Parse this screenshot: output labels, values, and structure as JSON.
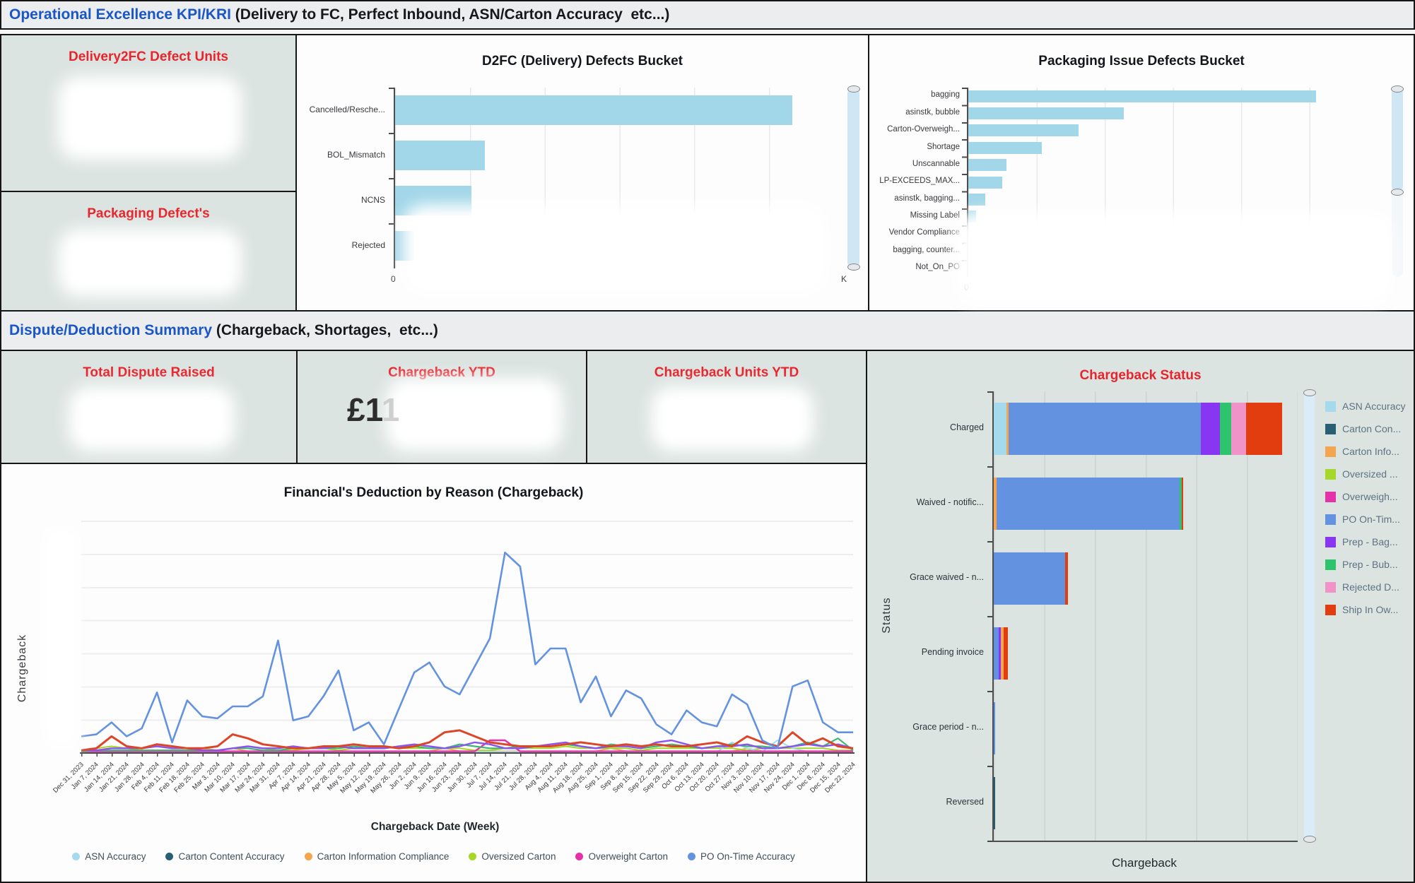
{
  "section1": {
    "strong": "Operational Excellence KPI/KRI",
    "rest": " (Delivery to FC, Perfect Inbound, ASN/Carton Accuracy  etc...)"
  },
  "section2": {
    "strong": "Dispute/Deduction Summary",
    "rest": " (Chargeback, Shortages,  etc...)"
  },
  "kpis": {
    "delivery2fc": {
      "title": "Delivery2FC Defect Units",
      "value_blurred": true
    },
    "packaging_defects": {
      "title": "Packaging Defect's",
      "value_blurred": true
    },
    "total_dispute": {
      "title": "Total Dispute Raised",
      "value_blurred": true
    },
    "chargeback_ytd": {
      "title": "Chargeback YTD",
      "value_strong": "£1",
      "value_faded": "1",
      "value_blurred": true
    },
    "chargeback_units_ytd": {
      "title": "Chargeback Units YTD",
      "value_blurred": true
    }
  },
  "palette": {
    "asn": "#a5d9ee",
    "carton_content": "#295f75",
    "carton_info": "#f5a54f",
    "oversized": "#a6d828",
    "overweight": "#e632a8",
    "po": "#6392e0",
    "prep_bag": "#8936f2",
    "prep_bub": "#2ec46e",
    "rejected": "#f093c8",
    "ship": "#e13d0e",
    "red_line": "#dd4527",
    "purple_line": "#8b54ee",
    "green_line": "#3cb873",
    "bar_blue": "#a2d7e9",
    "header_blue": "#1a56c6",
    "kpi_red": "#e8242c"
  },
  "chart_data": [
    {
      "id": "d2fc",
      "type": "bar",
      "orientation": "horizontal",
      "title": "D2FC (Delivery) Defects Bucket",
      "categories": [
        "Cancelled/Resche...",
        "BOL_Mismatch",
        "NCNS",
        "Rejected"
      ],
      "values_pct": [
        88.5,
        20,
        17,
        4.2
      ],
      "xticks": [
        "0",
        "K"
      ],
      "values_blurred": true
    },
    {
      "id": "packaging",
      "type": "bar",
      "orientation": "horizontal",
      "title": "Packaging Issue Defects Bucket",
      "categories": [
        "bagging",
        "asinstk, bubble",
        "Carton-Overweigh...",
        "Shortage",
        "Unscannable",
        "LP-EXCEEDS_MAX...",
        "asinstk, bagging...",
        "Missing Label",
        "Vendor Compliance",
        "bagging, counter...",
        "Not_On_PO"
      ],
      "values_pct": [
        85,
        38,
        27,
        18,
        9.3,
        8.3,
        4.1,
        1.9,
        1.9,
        1.1,
        1.1
      ],
      "xticks": [
        "0"
      ],
      "values_blurred": true
    },
    {
      "id": "deduction",
      "type": "line",
      "title": "Financial's Deduction by Reason (Chargeback)",
      "ylabel": "Chargeback",
      "xlabel": "Chargeback Date (Week)",
      "ymax": 116,
      "y_axis_values_blurred": true,
      "x": [
        "Dec 31, 2023",
        "Jan 7, 2024",
        "Jan 14, 2024",
        "Jan 21, 2024",
        "Jan 28, 2024",
        "Feb 4, 2024",
        "Feb 11, 2024",
        "Feb 18, 2024",
        "Feb 25, 2024",
        "Mar 3, 2024",
        "Mar 10, 2024",
        "Mar 17, 2024",
        "Mar 24, 2024",
        "Mar 31, 2024",
        "Apr 7, 2024",
        "Apr 14, 2024",
        "Apr 21, 2024",
        "Apr 28, 2024",
        "May 5, 2024",
        "May 12, 2024",
        "May 19, 2024",
        "May 26, 2024",
        "Jun 2, 2024",
        "Jun 9, 2024",
        "Jun 16, 2024",
        "Jun 23, 2024",
        "Jun 30, 2024",
        "Jul 7, 2024",
        "Jul 14, 2024",
        "Jul 21, 2024",
        "Jul 28, 2024",
        "Aug 4, 2024",
        "Aug 11, 2024",
        "Aug 18, 2024",
        "Aug 25, 2024",
        "Sep 1, 2024",
        "Sep 8, 2024",
        "Sep 15, 2024",
        "Sep 22, 2024",
        "Sep 29, 2024",
        "Oct 6, 2024",
        "Oct 13, 2024",
        "Oct 20, 2024",
        "Oct 27, 2024",
        "Nov 3, 2024",
        "Nov 10, 2024",
        "Nov 17, 2024",
        "Nov 24, 2024",
        "Dec 1, 2024",
        "Dec 8, 2024",
        "Dec 15, 2024",
        "Dec 22, 2024"
      ],
      "legend": [
        {
          "label": "ASN Accuracy",
          "key": "asn"
        },
        {
          "label": "Carton Content Accuracy",
          "key": "carton_content"
        },
        {
          "label": "Carton Information Compliance",
          "key": "carton_info"
        },
        {
          "label": "Oversized Carton",
          "key": "oversized"
        },
        {
          "label": "Overweight Carton",
          "key": "overweight"
        },
        {
          "label": "PO On-Time Accuracy",
          "key": "po"
        }
      ],
      "series": [
        {
          "name": "Carton Content Accuracy",
          "key": "carton_content",
          "width": 1.4,
          "fill": 0.4,
          "overrides": {}
        },
        {
          "name": "Carton Information Compliance",
          "key": "carton_info",
          "width": 1.6,
          "fill": 0.6,
          "overrides": {
            "10": 2,
            "24": 2,
            "35": 2,
            "44": 2
          }
        },
        {
          "name": "Oversized Carton",
          "key": "oversized",
          "width": 2,
          "values": [
            1,
            2,
            3,
            2,
            1,
            1,
            1,
            1,
            2,
            1,
            2,
            3,
            2,
            1,
            1,
            2,
            2,
            1,
            2,
            2,
            3,
            2,
            2,
            2,
            2,
            2,
            1,
            1,
            2,
            2,
            2,
            2,
            3,
            2,
            2,
            2,
            2,
            1,
            2,
            2,
            2,
            2,
            2,
            2,
            1,
            2,
            2,
            2,
            2,
            2,
            1,
            1
          ]
        },
        {
          "name": "ASN Accuracy",
          "key": "asn",
          "width": 2,
          "fill": 0.3,
          "overrides": {
            "43": 5,
            "44": 2,
            "46": 6,
            "47": 2
          }
        },
        {
          "name": "Overweight Carton",
          "key": "overweight",
          "width": 2.4,
          "fill": 0.5,
          "overrides": {
            "27": 6,
            "28": 6
          }
        },
        {
          "name": "unlabeled-green-line",
          "key": "green_line",
          "width": 2.2,
          "values": [
            0.5,
            1,
            1,
            1,
            1,
            1,
            1,
            1,
            1,
            1,
            2,
            2,
            1,
            1,
            2,
            2,
            2,
            2,
            3,
            2,
            2,
            3,
            3,
            2,
            2,
            4,
            3,
            2,
            2,
            3,
            3,
            3,
            4,
            3,
            2,
            4,
            3,
            2,
            3,
            4,
            3,
            2,
            3,
            4,
            3,
            3,
            2,
            3,
            5,
            3,
            7,
            1
          ]
        },
        {
          "name": "unlabeled-purple-line",
          "key": "purple_line",
          "width": 2.4,
          "values": [
            1,
            1,
            2,
            2,
            2,
            3,
            2,
            2,
            1,
            1,
            2,
            3,
            2,
            2,
            3,
            2,
            2,
            3,
            2,
            2,
            2,
            3,
            4,
            3,
            2,
            3,
            5,
            4,
            2,
            2,
            3,
            4,
            5,
            3,
            2,
            3,
            3,
            2,
            5,
            6,
            4,
            2,
            3,
            3,
            4,
            2,
            2,
            3,
            4,
            3,
            4,
            2
          ]
        },
        {
          "name": "unlabeled-red-line",
          "key": "red_line",
          "width": 3,
          "values": [
            1,
            2,
            8,
            3,
            2,
            4,
            3,
            2,
            2,
            3,
            9,
            7,
            4,
            3,
            2,
            2,
            3,
            3,
            4,
            3,
            3,
            2,
            3,
            5,
            10,
            11,
            8,
            5,
            4,
            3,
            3,
            3,
            4,
            5,
            4,
            3,
            4,
            3,
            4,
            3,
            3,
            4,
            5,
            3,
            8,
            5,
            3,
            10,
            4,
            7,
            3,
            2
          ]
        },
        {
          "name": "PO On-Time Accuracy",
          "key": "po",
          "width": 2.6,
          "values": [
            8,
            9,
            15,
            8,
            12,
            30,
            5,
            26,
            18,
            17,
            23,
            23,
            28,
            56,
            16,
            18,
            28,
            41,
            11,
            15,
            4,
            22,
            40,
            45,
            33,
            29,
            43,
            57,
            100,
            93,
            44,
            52,
            52,
            25,
            38,
            18,
            31,
            27,
            14,
            9,
            21,
            15,
            13,
            29,
            24,
            6,
            2,
            33,
            36,
            15,
            10,
            10
          ]
        }
      ]
    },
    {
      "id": "status",
      "type": "stacked-bar",
      "orientation": "horizontal",
      "title": "Chargeback Status",
      "xlabel": "Chargeback",
      "ylabel": "Status",
      "categories": [
        "Charged",
        "Waived - notific...",
        "Grace waived - n...",
        "Pending invoice",
        "Grace period - n...",
        "Reversed"
      ],
      "legend": [
        {
          "label": "ASN Accuracy",
          "key": "asn"
        },
        {
          "label": "Carton Con...",
          "key": "carton_content"
        },
        {
          "label": "Carton Info...",
          "key": "carton_info"
        },
        {
          "label": "Oversized ...",
          "key": "oversized"
        },
        {
          "label": "Overweigh...",
          "key": "overweight"
        },
        {
          "label": "PO On-Tim...",
          "key": "po"
        },
        {
          "label": "Prep - Bag...",
          "key": "prep_bag"
        },
        {
          "label": "Prep - Bub...",
          "key": "prep_bub"
        },
        {
          "label": "Rejected D...",
          "key": "rejected"
        },
        {
          "label": "Ship In Ow...",
          "key": "ship"
        }
      ],
      "bars": [
        {
          "category": "Charged",
          "segments": [
            {
              "key": "asn",
              "pct": 4.2
            },
            {
              "key": "carton_info",
              "pct": 0.7
            },
            {
              "key": "po",
              "pct": 63.3
            },
            {
              "key": "prep_bag",
              "pct": 6.3
            },
            {
              "key": "prep_bub",
              "pct": 3.7
            },
            {
              "key": "rejected",
              "pct": 4.9
            },
            {
              "key": "ship",
              "pct": 11.9
            }
          ]
        },
        {
          "category": "Waived - notific...",
          "segments": [
            {
              "key": "carton_info",
              "pct": 0.9
            },
            {
              "key": "po",
              "pct": 60.2
            },
            {
              "key": "prep_bub",
              "pct": 0.7
            },
            {
              "key": "ship",
              "pct": 0.5
            }
          ]
        },
        {
          "category": "Grace waived - n...",
          "segments": [
            {
              "key": "po",
              "pct": 23.5
            },
            {
              "key": "ship",
              "pct": 0.9
            }
          ]
        },
        {
          "category": "Pending invoice",
          "segments": [
            {
              "key": "po",
              "pct": 1.6
            },
            {
              "key": "prep_bag",
              "pct": 0.7
            },
            {
              "key": "carton_info",
              "pct": 0.9
            },
            {
              "key": "ship",
              "pct": 1.4
            }
          ]
        },
        {
          "category": "Grace period - n...",
          "segments": [
            {
              "key": "po",
              "pct": 0.5
            }
          ]
        },
        {
          "category": "Reversed",
          "segments": [
            {
              "key": "carton_content",
              "pct": 0.35
            }
          ]
        }
      ]
    }
  ]
}
